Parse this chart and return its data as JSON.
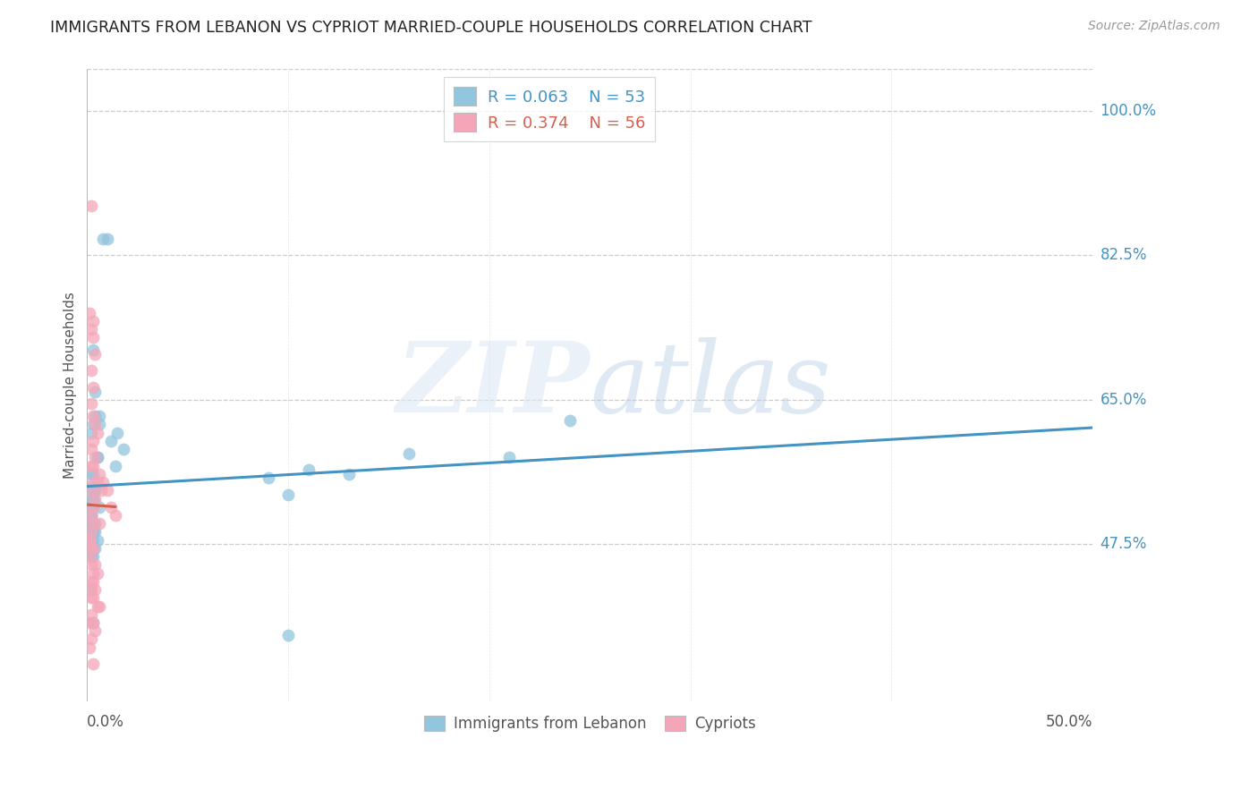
{
  "title": "IMMIGRANTS FROM LEBANON VS CYPRIOT MARRIED-COUPLE HOUSEHOLDS CORRELATION CHART",
  "source": "Source: ZipAtlas.com",
  "ylabel": "Married-couple Households",
  "ytick_labels": [
    "100.0%",
    "82.5%",
    "65.0%",
    "47.5%"
  ],
  "ytick_values": [
    1.0,
    0.825,
    0.65,
    0.475
  ],
  "xtick_labels": [
    "0.0%",
    "50.0%"
  ],
  "xtick_values": [
    0.0,
    0.5
  ],
  "xlim": [
    0.0,
    0.5
  ],
  "ylim": [
    0.285,
    1.05
  ],
  "legend_blue_r": "0.063",
  "legend_blue_n": "53",
  "legend_pink_r": "0.374",
  "legend_pink_n": "56",
  "blue_color": "#92c5de",
  "pink_color": "#f4a6b8",
  "blue_line_color": "#4393c3",
  "pink_line_color": "#d6604d",
  "grid_color": "#cccccc",
  "watermark_zip": "ZIP",
  "watermark_atlas": "atlas",
  "lebanon_x": [
    0.003,
    0.005,
    0.002,
    0.004,
    0.003,
    0.006,
    0.002,
    0.004,
    0.003,
    0.005,
    0.002,
    0.003,
    0.004,
    0.002,
    0.003,
    0.006,
    0.004,
    0.008,
    0.01,
    0.003,
    0.012,
    0.015,
    0.006,
    0.005,
    0.014,
    0.018,
    0.003,
    0.004,
    0.003,
    0.002,
    0.001,
    0.002,
    0.003,
    0.002,
    0.004,
    0.16,
    0.21,
    0.11,
    0.13,
    0.002,
    0.001,
    0.003,
    0.004,
    0.003,
    0.09,
    0.1,
    0.002,
    0.001,
    0.003,
    0.003,
    0.24,
    0.001,
    0.1
  ],
  "lebanon_y": [
    0.62,
    0.58,
    0.56,
    0.54,
    0.52,
    0.52,
    0.51,
    0.5,
    0.49,
    0.48,
    0.48,
    0.47,
    0.47,
    0.46,
    0.46,
    0.62,
    0.66,
    0.845,
    0.845,
    0.71,
    0.6,
    0.61,
    0.63,
    0.58,
    0.57,
    0.59,
    0.56,
    0.54,
    0.53,
    0.52,
    0.52,
    0.51,
    0.5,
    0.61,
    0.63,
    0.585,
    0.58,
    0.565,
    0.56,
    0.5,
    0.49,
    0.49,
    0.49,
    0.48,
    0.555,
    0.535,
    0.545,
    0.54,
    0.53,
    0.38,
    0.625,
    0.42,
    0.365
  ],
  "cypriot_x": [
    0.002,
    0.001,
    0.003,
    0.002,
    0.003,
    0.004,
    0.002,
    0.003,
    0.002,
    0.003,
    0.004,
    0.005,
    0.003,
    0.002,
    0.004,
    0.002,
    0.003,
    0.006,
    0.008,
    0.005,
    0.007,
    0.01,
    0.004,
    0.003,
    0.012,
    0.014,
    0.002,
    0.003,
    0.002,
    0.001,
    0.001,
    0.002,
    0.003,
    0.001,
    0.004,
    0.002,
    0.003,
    0.005,
    0.002,
    0.003,
    0.002,
    0.004,
    0.003,
    0.002,
    0.005,
    0.006,
    0.002,
    0.001,
    0.003,
    0.004,
    0.002,
    0.001,
    0.003,
    0.002,
    0.006,
    0.003
  ],
  "cypriot_y": [
    0.885,
    0.755,
    0.745,
    0.735,
    0.725,
    0.705,
    0.685,
    0.665,
    0.645,
    0.63,
    0.62,
    0.61,
    0.6,
    0.59,
    0.58,
    0.57,
    0.57,
    0.56,
    0.55,
    0.55,
    0.54,
    0.54,
    0.53,
    0.52,
    0.52,
    0.51,
    0.51,
    0.5,
    0.49,
    0.48,
    0.48,
    0.47,
    0.47,
    0.46,
    0.45,
    0.45,
    0.44,
    0.44,
    0.43,
    0.43,
    0.42,
    0.42,
    0.41,
    0.41,
    0.4,
    0.4,
    0.39,
    0.38,
    0.38,
    0.37,
    0.36,
    0.35,
    0.55,
    0.54,
    0.5,
    0.33
  ]
}
